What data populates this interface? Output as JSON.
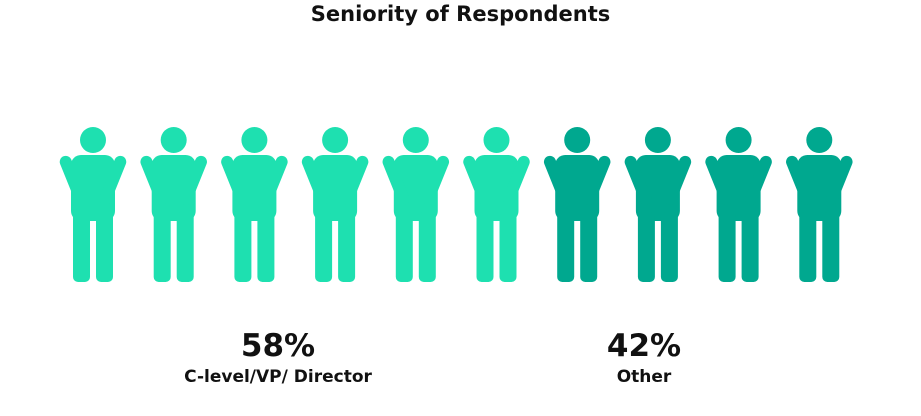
{
  "chart_data": {
    "type": "pictograph",
    "title": "Seniority of Respondents",
    "total_icons": 10,
    "icon": "person-icon",
    "categories": [
      "C-level/VP/ Director",
      "Other"
    ],
    "values": [
      58,
      42
    ],
    "value_labels": [
      "58%",
      "42%"
    ],
    "icon_counts": [
      6,
      4
    ],
    "colors": [
      "#1EE0B0",
      "#00A88F"
    ]
  }
}
